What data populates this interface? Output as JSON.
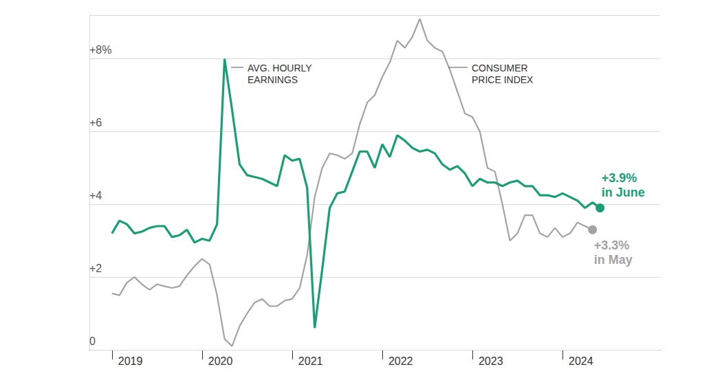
{
  "chart_data": {
    "type": "line",
    "categories": [
      null,
      null,
      null,
      "2019",
      null,
      null,
      null,
      null,
      null,
      null,
      null,
      null,
      null,
      null,
      null,
      "2020",
      null,
      null,
      null,
      null,
      null,
      null,
      null,
      null,
      null,
      null,
      null,
      "2021",
      null,
      null,
      null,
      null,
      null,
      null,
      null,
      null,
      null,
      null,
      null,
      "2022",
      null,
      null,
      null,
      null,
      null,
      null,
      null,
      null,
      null,
      null,
      null,
      "2023",
      null,
      null,
      null,
      null,
      null,
      null,
      null,
      null,
      null,
      null,
      null,
      "2024",
      null,
      null,
      null,
      null,
      null,
      null,
      null,
      null,
      null,
      null,
      null,
      null,
      null
    ],
    "series": [
      {
        "name": "AVG. HOURLY\nEARNINGS",
        "color": "#1a9e78",
        "end_label": "+3.9%\nin June",
        "values": [
          null,
          null,
          null,
          3.2,
          3.55,
          3.45,
          3.2,
          3.25,
          3.35,
          3.4,
          3.4,
          3.1,
          3.15,
          3.3,
          2.95,
          3.05,
          3.0,
          3.45,
          8.0,
          6.6,
          5.1,
          4.8,
          4.75,
          4.7,
          4.6,
          4.5,
          5.35,
          5.2,
          5.25,
          4.45,
          0.6,
          2.2,
          3.9,
          4.3,
          4.35,
          4.9,
          5.45,
          5.45,
          5.0,
          5.65,
          5.3,
          5.9,
          5.75,
          5.55,
          5.45,
          5.5,
          5.4,
          5.1,
          4.95,
          5.05,
          4.85,
          4.5,
          4.7,
          4.6,
          4.6,
          4.5,
          4.6,
          4.65,
          4.5,
          4.5,
          4.25,
          4.25,
          4.2,
          4.3,
          4.2,
          4.1,
          3.9,
          4.05,
          3.9,
          null,
          null,
          null,
          null,
          null,
          null,
          null,
          null
        ]
      },
      {
        "name": "CONSUMER\nPRICE INDEX",
        "color": "#a3a3a3",
        "end_label": "+3.3%\nin May",
        "values": [
          null,
          null,
          null,
          1.55,
          1.5,
          1.85,
          2.0,
          1.8,
          1.65,
          1.8,
          1.75,
          1.7,
          1.75,
          2.05,
          2.3,
          2.5,
          2.35,
          1.5,
          0.3,
          0.1,
          0.65,
          1.0,
          1.3,
          1.4,
          1.2,
          1.2,
          1.35,
          1.4,
          1.7,
          2.6,
          4.2,
          5.0,
          5.4,
          5.35,
          5.25,
          5.4,
          6.2,
          6.8,
          7.0,
          7.5,
          7.9,
          8.5,
          8.3,
          8.6,
          9.1,
          8.5,
          8.3,
          8.2,
          7.7,
          7.1,
          6.5,
          6.4,
          6.0,
          5.0,
          4.9,
          4.0,
          3.0,
          3.2,
          3.7,
          3.7,
          3.2,
          3.1,
          3.35,
          3.1,
          3.2,
          3.5,
          3.4,
          3.3,
          null,
          null,
          null,
          null,
          null,
          null,
          null,
          null,
          null
        ]
      }
    ],
    "ylim": [
      0,
      9.2
    ],
    "yticks": [
      0,
      {
        "value": 2,
        "label": "+2"
      },
      {
        "value": 4,
        "label": "+4"
      },
      {
        "value": 6,
        "label": "+6"
      },
      {
        "value": 8,
        "label": "+8%"
      }
    ],
    "grid": true
  }
}
